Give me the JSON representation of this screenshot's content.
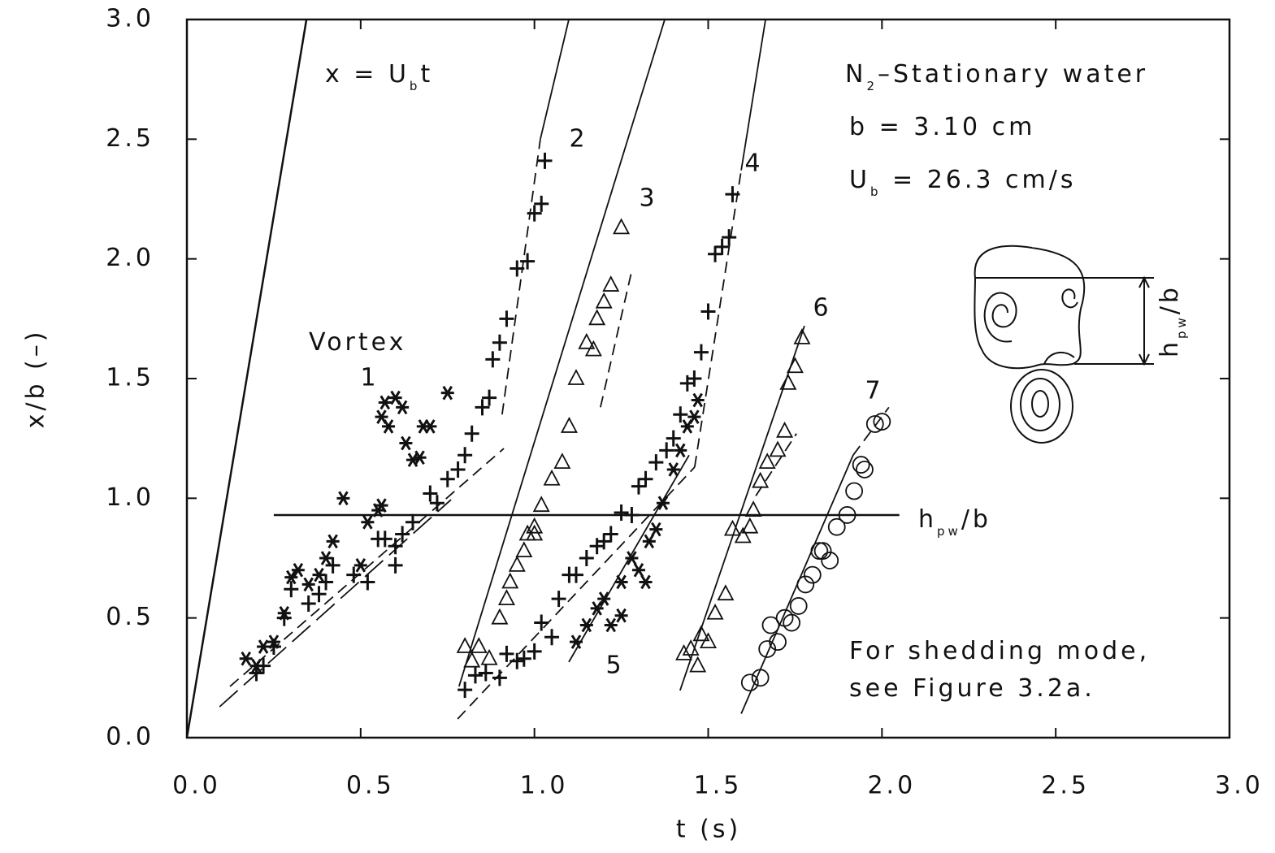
{
  "chart_data": {
    "type": "scatter",
    "xlabel": "t (s)",
    "ylabel": "x/b (–)",
    "xlim": [
      0,
      3
    ],
    "ylim": [
      0,
      3
    ],
    "xticks": [
      {
        "value": 0,
        "label": "0.0"
      },
      {
        "value": 0.5,
        "label": "0.5"
      },
      {
        "value": 1,
        "label": "1.0"
      },
      {
        "value": 1.5,
        "label": "1.5"
      },
      {
        "value": 2,
        "label": "2.0"
      },
      {
        "value": 2.5,
        "label": "2.5"
      },
      {
        "value": 3,
        "label": "3.0"
      }
    ],
    "yticks": [
      {
        "value": 0,
        "label": "0.0"
      },
      {
        "value": 0.5,
        "label": "0.5"
      },
      {
        "value": 1,
        "label": "1.0"
      },
      {
        "value": 1.5,
        "label": "1.5"
      },
      {
        "value": 2,
        "label": "2.0"
      },
      {
        "value": 2.5,
        "label": "2.5"
      },
      {
        "value": 3,
        "label": "3.0"
      }
    ],
    "color": "#111111",
    "series": [
      {
        "name": "1",
        "marker": "star",
        "x": [
          0.17,
          0.2,
          0.22,
          0.25,
          0.28,
          0.3,
          0.32,
          0.35,
          0.38,
          0.4,
          0.42,
          0.45,
          0.5,
          0.52,
          0.55,
          0.56,
          0.57,
          0.6,
          0.62,
          0.58,
          0.63,
          0.65,
          0.67,
          0.68,
          0.7,
          0.75,
          0.56
        ],
        "y": [
          0.33,
          0.3,
          0.38,
          0.4,
          0.52,
          0.67,
          0.7,
          0.64,
          0.68,
          0.75,
          0.82,
          1.0,
          0.72,
          0.9,
          0.95,
          1.34,
          1.4,
          1.42,
          1.38,
          1.3,
          1.23,
          1.16,
          1.17,
          1.3,
          1.3,
          1.44,
          0.97
        ]
      },
      {
        "name": "2",
        "marker": "plus",
        "x": [
          0.2,
          0.22,
          0.25,
          0.28,
          0.3,
          0.35,
          0.38,
          0.4,
          0.42,
          0.48,
          0.52,
          0.55,
          0.57,
          0.6,
          0.62,
          0.6,
          0.65,
          0.7,
          0.72,
          0.75,
          0.78,
          0.8,
          0.82,
          0.85,
          0.87,
          0.88,
          0.9,
          0.92,
          0.95,
          0.98,
          1.0,
          1.02,
          1.03
        ],
        "y": [
          0.27,
          0.3,
          0.38,
          0.5,
          0.62,
          0.56,
          0.6,
          0.65,
          0.72,
          0.68,
          0.65,
          0.83,
          0.83,
          0.8,
          0.85,
          0.72,
          0.9,
          1.02,
          0.98,
          1.08,
          1.12,
          1.18,
          1.27,
          1.38,
          1.42,
          1.58,
          1.65,
          1.75,
          1.96,
          1.99,
          2.19,
          2.23,
          2.41
        ]
      },
      {
        "name": "3",
        "marker": "triangle",
        "x": [
          0.8,
          0.82,
          0.84,
          0.87,
          0.9,
          0.92,
          0.93,
          0.95,
          0.97,
          0.98,
          1.0,
          1.02,
          1.05,
          1.08,
          1.1,
          1.12,
          1.15,
          1.17,
          1.18,
          1.2,
          1.22,
          1.25,
          1.0
        ],
        "y": [
          0.38,
          0.32,
          0.38,
          0.33,
          0.5,
          0.58,
          0.65,
          0.72,
          0.78,
          0.85,
          0.88,
          0.97,
          1.08,
          1.15,
          1.3,
          1.5,
          1.65,
          1.62,
          1.75,
          1.82,
          1.89,
          2.13,
          0.85
        ]
      },
      {
        "name": "4",
        "marker": "plus",
        "x": [
          0.8,
          0.83,
          0.86,
          0.9,
          0.92,
          0.95,
          0.97,
          1.0,
          1.02,
          1.05,
          1.07,
          1.1,
          1.12,
          1.15,
          1.18,
          1.2,
          1.22,
          1.25,
          1.28,
          1.3,
          1.32,
          1.35,
          1.38,
          1.4,
          1.42,
          1.44,
          1.46,
          1.48,
          1.5,
          1.52,
          1.54,
          1.56,
          1.57
        ],
        "y": [
          0.2,
          0.26,
          0.27,
          0.25,
          0.35,
          0.32,
          0.33,
          0.36,
          0.48,
          0.42,
          0.58,
          0.68,
          0.68,
          0.75,
          0.8,
          0.82,
          0.85,
          0.94,
          0.93,
          1.05,
          1.08,
          1.15,
          1.2,
          1.25,
          1.35,
          1.48,
          1.5,
          1.61,
          1.78,
          2.02,
          2.05,
          2.09,
          2.27
        ]
      },
      {
        "name": "5",
        "marker": "star",
        "x": [
          1.12,
          1.15,
          1.18,
          1.2,
          1.22,
          1.25,
          1.28,
          1.3,
          1.32,
          1.35,
          1.33,
          1.37,
          1.4,
          1.42,
          1.44,
          1.46,
          1.47,
          1.25
        ],
        "y": [
          0.4,
          0.47,
          0.54,
          0.58,
          0.47,
          0.51,
          0.75,
          0.7,
          0.65,
          0.87,
          0.82,
          0.98,
          1.12,
          1.2,
          1.3,
          1.34,
          1.41,
          0.65
        ]
      },
      {
        "name": "6",
        "marker": "triangle",
        "x": [
          1.43,
          1.45,
          1.47,
          1.48,
          1.5,
          1.52,
          1.55,
          1.57,
          1.6,
          1.62,
          1.63,
          1.65,
          1.67,
          1.7,
          1.72,
          1.73,
          1.75,
          1.77
        ],
        "y": [
          0.35,
          0.37,
          0.3,
          0.43,
          0.4,
          0.52,
          0.6,
          0.87,
          0.84,
          0.88,
          0.95,
          1.07,
          1.15,
          1.2,
          1.28,
          1.48,
          1.55,
          1.67
        ]
      },
      {
        "name": "7",
        "marker": "circle",
        "x": [
          1.62,
          1.65,
          1.67,
          1.68,
          1.7,
          1.72,
          1.74,
          1.76,
          1.78,
          1.8,
          1.82,
          1.83,
          1.85,
          1.87,
          1.9,
          1.92,
          1.94,
          1.95,
          1.98,
          2.0
        ],
        "y": [
          0.23,
          0.25,
          0.37,
          0.47,
          0.4,
          0.5,
          0.48,
          0.55,
          0.64,
          0.68,
          0.78,
          0.78,
          0.74,
          0.88,
          0.93,
          1.03,
          1.14,
          1.12,
          1.31,
          1.32
        ]
      }
    ],
    "fit_lines": [
      {
        "x": [
          0,
          0.344
        ],
        "y": [
          0,
          3.0
        ],
        "dash": "solid"
      },
      {
        "x": [
          0.124,
          0.912
        ],
        "y": [
          0.214,
          1.208
        ],
        "dash": "short"
      },
      {
        "x": [
          0.094,
          0.76
        ],
        "y": [
          0.129,
          0.994
        ],
        "dash": "long"
      },
      {
        "x": [
          0.907,
          1.017
        ],
        "y": [
          1.35,
          2.5
        ],
        "dash": "short"
      },
      {
        "x": [
          1.017,
          1.099
        ],
        "y": [
          2.5,
          3.0
        ],
        "dash": "solid"
      },
      {
        "x": [
          0.783,
          1.375
        ],
        "y": [
          0.214,
          3.0
        ],
        "dash": "solid"
      },
      {
        "x": [
          1.19,
          1.28
        ],
        "y": [
          1.38,
          1.95
        ],
        "dash": "short"
      },
      {
        "x": [
          0.779,
          1.461
        ],
        "y": [
          0.078,
          1.13
        ],
        "dash": "short"
      },
      {
        "x": [
          1.461,
          1.595
        ],
        "y": [
          1.13,
          2.37
        ],
        "dash": "short"
      },
      {
        "x": [
          1.595,
          1.665
        ],
        "y": [
          2.37,
          3.0
        ],
        "dash": "solid"
      },
      {
        "x": [
          1.099,
          1.445
        ],
        "y": [
          0.316,
          1.18
        ],
        "dash": "solid"
      },
      {
        "x": [
          1.419,
          1.777
        ],
        "y": [
          0.197,
          1.72
        ],
        "dash": "solid"
      },
      {
        "x": [
          1.637,
          1.754
        ],
        "y": [
          1.01,
          1.27
        ],
        "dash": "short"
      },
      {
        "x": [
          1.595,
          1.917
        ],
        "y": [
          0.1,
          1.18
        ],
        "dash": "solid"
      },
      {
        "x": [
          1.917,
          2.02
        ],
        "y": [
          1.18,
          1.38
        ],
        "dash": "short"
      }
    ],
    "hline": {
      "y": 0.93,
      "x": [
        0.25,
        2.05
      ]
    },
    "annotations": [
      {
        "parts": [
          {
            "text": "x = U"
          },
          {
            "text": "b",
            "sub": true
          },
          {
            "text": "t"
          }
        ]
      },
      {
        "parts": [
          {
            "text": "N"
          },
          {
            "text": "2",
            "sub": true
          },
          {
            "text": "–Stationary water"
          }
        ]
      },
      {
        "parts": [
          {
            "text": "b = 3.10 cm"
          }
        ]
      },
      {
        "parts": [
          {
            "text": "U"
          },
          {
            "text": "b",
            "sub": true
          },
          {
            "text": " = 26.3 cm/s"
          }
        ]
      },
      {
        "parts": [
          {
            "text": "Vortex"
          }
        ]
      },
      {
        "parts": [
          {
            "text": "For shedding mode,"
          }
        ]
      },
      {
        "parts": [
          {
            "text": "see Figure 3.2a."
          }
        ]
      },
      {
        "parts": [
          {
            "text": "h"
          },
          {
            "text": "pw",
            "sub": true
          },
          {
            "text": "/b"
          }
        ]
      },
      {
        "parts": [
          {
            "text": "h"
          },
          {
            "text": "pw",
            "sub": true
          },
          {
            "text": "/b"
          }
        ]
      }
    ]
  }
}
